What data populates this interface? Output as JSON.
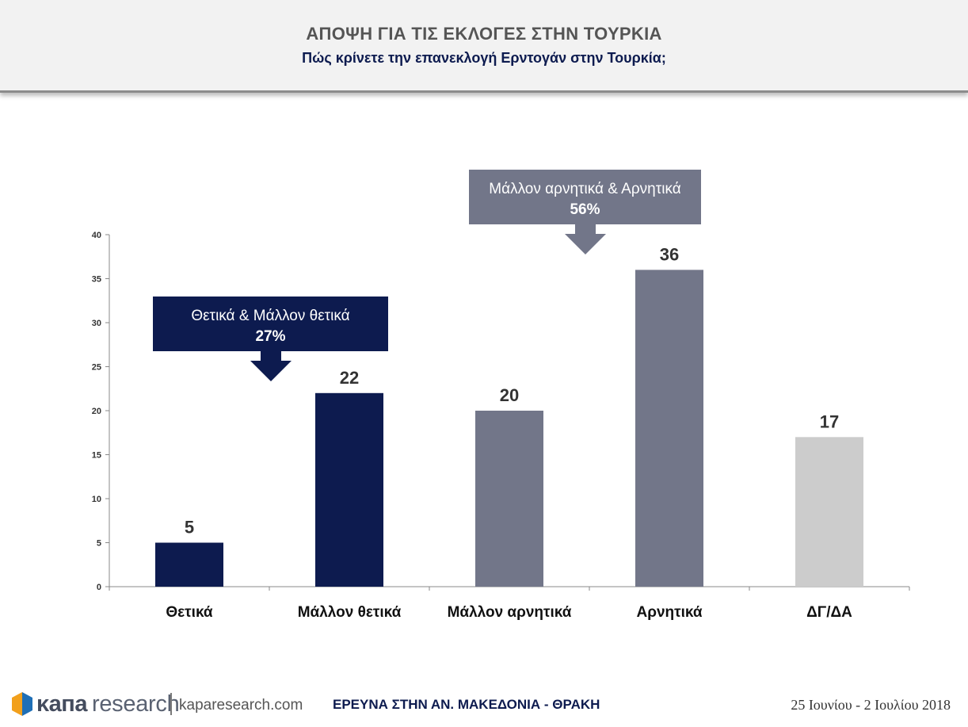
{
  "header": {
    "title": "ΑΠΟΨΗ ΓΙΑ ΤΙΣ ΕΚΛΟΓΕΣ ΣΤΗΝ ΤΟΥΡΚΙΑ",
    "subtitle": "Πώς κρίνετε την επανεκλογή Ερντογάν στην Τουρκία;"
  },
  "chart_data": {
    "type": "bar",
    "categories": [
      "Θετικά",
      "Μάλλον θετικά",
      "Μάλλον αρνητικά",
      "Αρνητικά",
      "ΔΓ/ΔΑ"
    ],
    "values": [
      5,
      22,
      20,
      36,
      17
    ],
    "colors": [
      "#0d1b4f",
      "#0d1b4f",
      "#727689",
      "#727689",
      "#cccccc"
    ],
    "ylim": [
      0,
      40
    ],
    "yticks": [
      0,
      5,
      10,
      15,
      20,
      25,
      30,
      35,
      40
    ],
    "grid": false,
    "data_labels": true,
    "annotations": [
      {
        "line1": "Θετικά & Μάλλον θετικά",
        "line2": "27%",
        "color": "#0d1b4f"
      },
      {
        "line1": "Μάλλον αρνητικά & Αρνητικά",
        "line2": "56%",
        "color": "#727689"
      }
    ]
  },
  "footer": {
    "logo_kapa": "κапа",
    "logo_research": "research",
    "logo_url": "kaparesearch.com",
    "survey": "ΕΡΕΥΝΑ ΣΤΗΝ ΑΝ. ΜΑΚΕΔΟΝΙΑ - ΘΡΑΚΗ",
    "date": "25 Ιουνίου - 2 Ιουλίου 2018",
    "logo_colors": [
      "#f2a01c",
      "#1f6fb6"
    ]
  }
}
